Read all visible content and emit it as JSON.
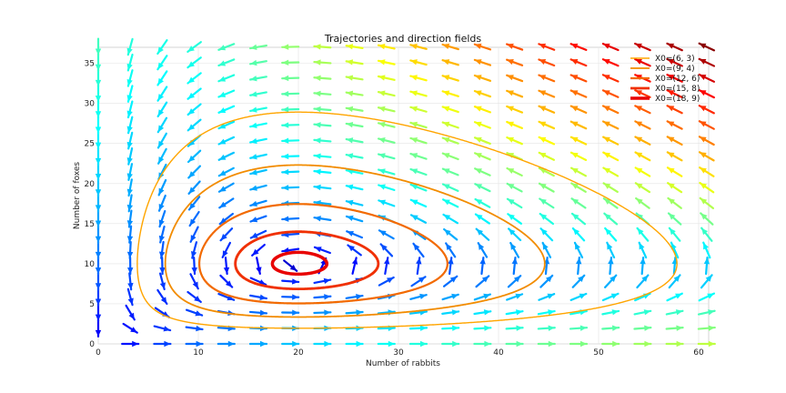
{
  "chart_data": {
    "type": "line",
    "title": "Trajectories and direction fields",
    "xlabel": "Number of rabbits",
    "ylabel": "Number of foxes",
    "xlim": [
      0,
      61
    ],
    "ylim": [
      0,
      37
    ],
    "x_ticks": [
      0,
      10,
      20,
      30,
      40,
      50,
      60
    ],
    "y_ticks": [
      0,
      5,
      10,
      15,
      20,
      25,
      30,
      35
    ],
    "grid": true,
    "legend_position": "top-right",
    "equilibrium": [
      20,
      10
    ],
    "series": [
      {
        "name": "X0=(6, 3)",
        "color": "#ffa500",
        "x_range": [
          3.9,
          57.9
        ],
        "y_range": [
          2.3,
          35.2
        ]
      },
      {
        "name": "X0=(9, 4)",
        "color": "#f28c00",
        "x_range": [
          6.7,
          44.8
        ],
        "y_range": [
          2.9,
          25.6
        ]
      },
      {
        "name": "X0=(12, 6)",
        "color": "#f26a00",
        "x_range": [
          10.1,
          35.6
        ],
        "y_range": [
          4.6,
          19.4
        ]
      },
      {
        "name": "X0=(15, 8)",
        "color": "#f03000",
        "x_range": [
          13.7,
          28.0
        ],
        "y_range": [
          6.3,
          14.7
        ]
      },
      {
        "name": "X0=(18, 9)",
        "color": "#e80000",
        "x_range": [
          17.4,
          23.7
        ],
        "y_range": [
          8.5,
          11.7
        ]
      }
    ],
    "direction_field": {
      "x_values": [
        0,
        3.2,
        6.4,
        9.6,
        12.8,
        16,
        19.2,
        22.4,
        25.6,
        28.8,
        32,
        35.2,
        38.4,
        41.6,
        44.8,
        48,
        51.2,
        54.4,
        57.6,
        60.8
      ],
      "y_values": [
        0,
        1.95,
        3.9,
        5.85,
        7.8,
        9.75,
        11.7,
        13.65,
        15.6,
        17.55,
        19.5,
        21.45,
        23.4,
        25.35,
        27.3,
        29.25,
        31.2,
        33.15,
        35.1,
        37.05
      ],
      "colormap": "jet"
    }
  }
}
